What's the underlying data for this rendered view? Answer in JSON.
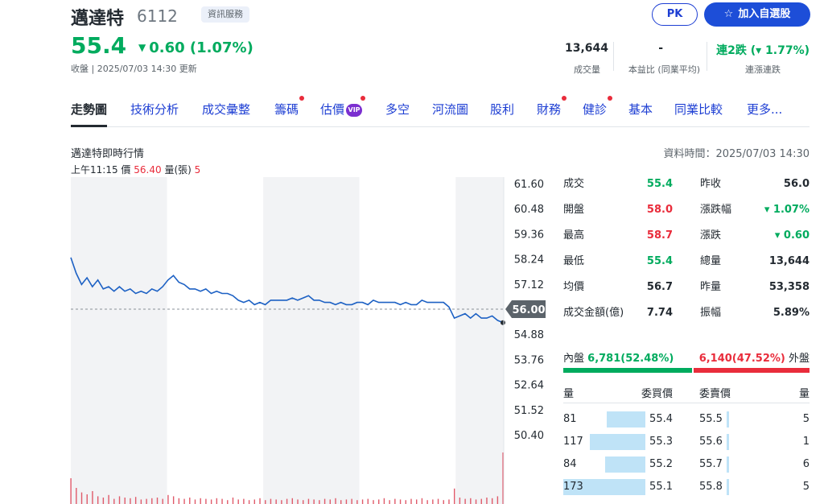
{
  "header": {
    "name": "邁達特",
    "code": "6112",
    "tag": "資訊服務",
    "pk_label": "PK",
    "watch_label": "加入自選股",
    "price": "55.4",
    "change": "0.60 (1.07%)",
    "close_time": "收盤 | 2025/07/03 14:30 更新"
  },
  "stats": {
    "volume": {
      "value": "13,644",
      "label": "成交量"
    },
    "pe": {
      "value": "-",
      "label": "本益比 (同業平均)"
    },
    "streak": {
      "value": "連2跌 (▾ 1.77%)",
      "label": "連漲連跌"
    }
  },
  "tabs": [
    {
      "label": "走勢圖"
    },
    {
      "label": "技術分析"
    },
    {
      "label": "成交彙整"
    },
    {
      "label": "籌碼"
    },
    {
      "label": "估價"
    },
    {
      "label": "多空"
    },
    {
      "label": "河流圖"
    },
    {
      "label": "股利"
    },
    {
      "label": "財務"
    },
    {
      "label": "健診"
    },
    {
      "label": "基本"
    },
    {
      "label": "同業比較"
    },
    {
      "label": "更多..."
    }
  ],
  "vip_badge": "VIP",
  "chart_section": {
    "title": "邁達特即時行情",
    "data_time": "資料時間：2025/07/03 14:30",
    "hover_time": "上午11:15",
    "hover_price_label": "價",
    "hover_price": "56.40",
    "hover_vol_label": "量(張)",
    "hover_vol": "5",
    "ref_price_label": "56.00"
  },
  "chart_data": {
    "type": "line",
    "title": "",
    "y_ticks": [
      "61.60",
      "60.48",
      "59.36",
      "58.24",
      "57.12",
      "56.00",
      "54.88",
      "53.76",
      "52.64",
      "51.52",
      "50.40"
    ],
    "ylim": [
      50.4,
      61.6
    ],
    "reference_price": 56.0,
    "series": [
      {
        "values": [
          58.3,
          57.6,
          57.1,
          57.4,
          57.0,
          57.3,
          56.9,
          57.0,
          56.8,
          57.0,
          56.8,
          56.9,
          56.7,
          56.8,
          56.7,
          56.9,
          56.8,
          57.0,
          57.3,
          57.5,
          57.2,
          57.1,
          56.9,
          56.9,
          56.8,
          56.9,
          56.7,
          56.8,
          56.7,
          56.7,
          56.6,
          56.4,
          56.3,
          56.4,
          56.2,
          56.3,
          56.2,
          56.4,
          56.4,
          56.4,
          56.4,
          56.5,
          56.4,
          56.5,
          56.6,
          56.4,
          56.4,
          56.3,
          56.3,
          56.2,
          56.3,
          56.2,
          56.2,
          56.3,
          56.3,
          56.2,
          56.4,
          56.3,
          56.3,
          56.3,
          56.3,
          56.2,
          56.3,
          56.2,
          56.2,
          56.4,
          56.3,
          56.3,
          56.3,
          56.3,
          56.1,
          55.6,
          55.7,
          55.8,
          55.6,
          55.8,
          55.6,
          55.6,
          55.7,
          55.5,
          55.4
        ]
      }
    ],
    "volume": [
      40,
      25,
      18,
      15,
      20,
      12,
      10,
      14,
      8,
      12,
      10,
      9,
      11,
      7,
      8,
      9,
      10,
      8,
      14,
      12,
      9,
      8,
      10,
      7,
      9,
      8,
      7,
      9,
      8,
      6,
      10,
      7,
      8,
      6,
      7,
      9,
      6,
      8,
      7,
      6,
      8,
      9,
      7,
      6,
      8,
      7,
      6,
      8,
      7,
      9,
      6,
      7,
      8,
      6,
      7,
      8,
      6,
      7,
      9,
      6,
      8,
      7,
      6,
      8,
      7,
      9,
      6,
      7,
      8,
      6,
      7,
      24,
      10,
      8,
      9,
      7,
      8,
      10,
      9,
      12,
      80
    ]
  },
  "quote": {
    "left": [
      {
        "label": "成交",
        "value": "55.4",
        "color": "green"
      },
      {
        "label": "開盤",
        "value": "58.0",
        "color": "red"
      },
      {
        "label": "最高",
        "value": "58.7",
        "color": "red"
      },
      {
        "label": "最低",
        "value": "55.4",
        "color": "green"
      },
      {
        "label": "均價",
        "value": "56.7",
        "color": "black"
      },
      {
        "label": "成交金額(億)",
        "value": "7.74",
        "color": "black"
      }
    ],
    "right": [
      {
        "label": "昨收",
        "value": "56.0",
        "color": "black"
      },
      {
        "label": "漲跌幅",
        "value": "▾ 1.07%",
        "color": "green"
      },
      {
        "label": "漲跌",
        "value": "▾ 0.60",
        "color": "green"
      },
      {
        "label": "總量",
        "value": "13,644",
        "color": "black"
      },
      {
        "label": "昨量",
        "value": "53,358",
        "color": "black"
      },
      {
        "label": "振幅",
        "value": "5.89%",
        "color": "black"
      }
    ]
  },
  "inner_outer": {
    "inner_label": "內盤",
    "inner_value": "6,781(52.48%)",
    "inner_pct": 52.48,
    "outer_label": "外盤",
    "outer_value": "6,140(47.52%)",
    "outer_pct": 47.52
  },
  "orderbook": {
    "headers": {
      "bid_vol": "量",
      "bid_price": "委買價",
      "ask_price": "委賣價",
      "ask_vol": "量"
    },
    "rows": [
      {
        "bid_vol": "81",
        "bid_price": "55.4",
        "ask_price": "55.5",
        "ask_vol": "5"
      },
      {
        "bid_vol": "117",
        "bid_price": "55.3",
        "ask_price": "55.6",
        "ask_vol": "1"
      },
      {
        "bid_vol": "84",
        "bid_price": "55.2",
        "ask_price": "55.7",
        "ask_vol": "6"
      },
      {
        "bid_vol": "173",
        "bid_price": "55.1",
        "ask_price": "55.8",
        "ask_vol": "5"
      }
    ]
  }
}
